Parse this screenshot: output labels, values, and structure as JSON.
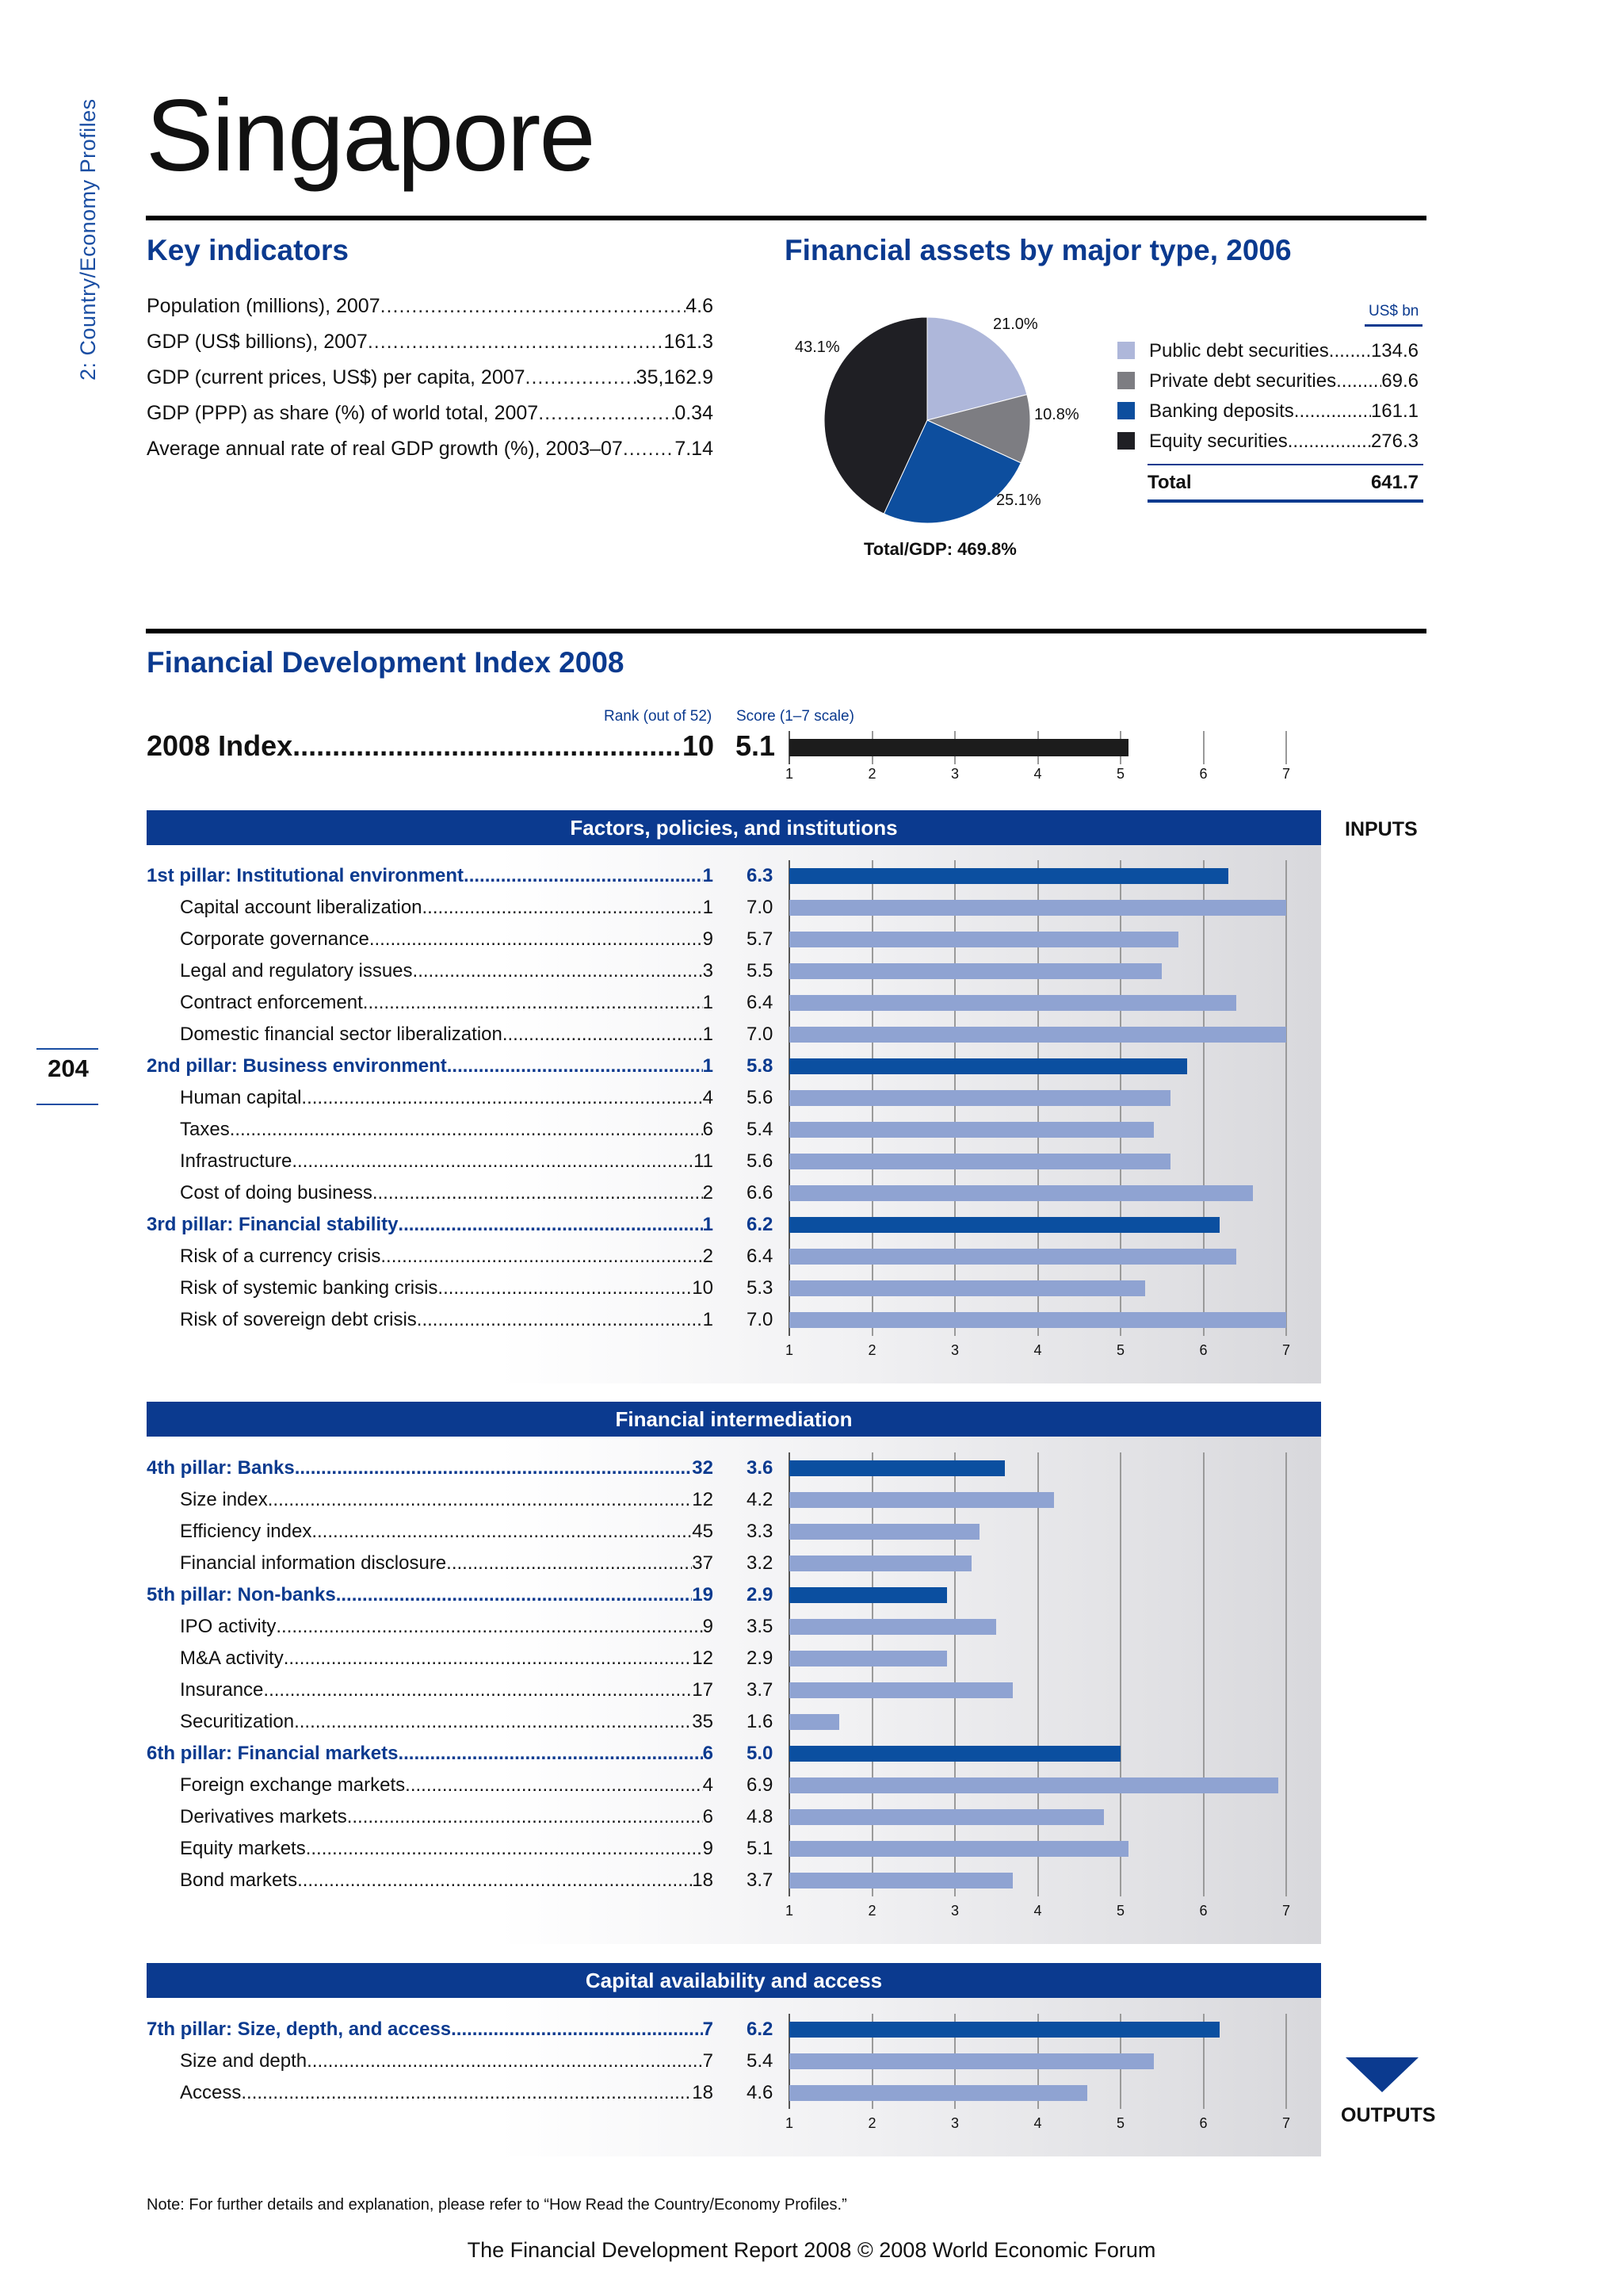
{
  "side_label": "2: Country/Economy Profiles",
  "page_number": "204",
  "title": "Singapore",
  "key_indicators": {
    "heading": "Key indicators",
    "rows": [
      {
        "label": "Population (millions), 2007",
        "value": "4.6"
      },
      {
        "label": "GDP (US$ billions), 2007",
        "value": "161.3"
      },
      {
        "label": "GDP (current prices, US$) per capita, 2007",
        "value": "35,162.9"
      },
      {
        "label": "GDP (PPP) as share (%) of world total, 2007",
        "value": "0.34"
      },
      {
        "label": "Average annual rate of real GDP growth (%), 2003–07",
        "value": "7.14"
      }
    ]
  },
  "assets": {
    "heading": "Financial assets by major type, 2006",
    "unit": "US$ bn",
    "total_gdp": "Total/GDP: 469.8%",
    "slices": [
      {
        "name": "Public debt securities",
        "value": "134.6",
        "pct": "21.0%",
        "share": 21.0,
        "color": "#aeb7da"
      },
      {
        "name": "Private debt securities",
        "value": "69.6",
        "pct": "10.8%",
        "share": 10.8,
        "color": "#7d7d82"
      },
      {
        "name": "Banking deposits",
        "value": "161.1",
        "pct": "25.1%",
        "share": 25.1,
        "color": "#0d4e9e"
      },
      {
        "name": "Equity securities",
        "value": "276.3",
        "pct": "43.1%",
        "share": 43.1,
        "color": "#1f1f24"
      }
    ],
    "total_label": "Total",
    "total_value": "641.7"
  },
  "fdi": {
    "heading": "Financial Development Index 2008",
    "rank_head": "Rank (out of 52)",
    "score_head": "Score (1–7 scale)",
    "index_label": "2008 Index",
    "index_rank": "10",
    "index_score": "5.1",
    "ticks": [
      "1",
      "2",
      "3",
      "4",
      "5",
      "6",
      "7"
    ],
    "inputs_label": "INPUTS",
    "outputs_label": "OUTPUTS",
    "note": "Note: For further details and explanation, please refer to “How Read the Country/Economy Profiles.”",
    "footer": "The Financial Development Report 2008 © 2008 World Economic Forum",
    "sections": [
      {
        "title": "Factors, policies, and institutions",
        "rows": [
          {
            "label": "1st pillar: Institutional environment",
            "rank": "1",
            "score": "6.3",
            "pillar": true
          },
          {
            "label": "Capital account liberalization",
            "rank": "1",
            "score": "7.0",
            "pillar": false
          },
          {
            "label": "Corporate governance",
            "rank": "9",
            "score": "5.7",
            "pillar": false
          },
          {
            "label": "Legal and regulatory issues",
            "rank": "3",
            "score": "5.5",
            "pillar": false
          },
          {
            "label": "Contract enforcement",
            "rank": "1",
            "score": "6.4",
            "pillar": false
          },
          {
            "label": "Domestic financial sector liberalization",
            "rank": "1",
            "score": "7.0",
            "pillar": false
          },
          {
            "label": "2nd pillar: Business environment",
            "rank": "1",
            "score": "5.8",
            "pillar": true
          },
          {
            "label": "Human capital",
            "rank": "4",
            "score": "5.6",
            "pillar": false
          },
          {
            "label": "Taxes",
            "rank": "6",
            "score": "5.4",
            "pillar": false
          },
          {
            "label": "Infrastructure",
            "rank": "11",
            "score": "5.6",
            "pillar": false
          },
          {
            "label": "Cost of doing business",
            "rank": "2",
            "score": "6.6",
            "pillar": false
          },
          {
            "label": "3rd pillar: Financial stability",
            "rank": "1",
            "score": "6.2",
            "pillar": true
          },
          {
            "label": "Risk of a currency crisis",
            "rank": "2",
            "score": "6.4",
            "pillar": false
          },
          {
            "label": "Risk of systemic banking crisis",
            "rank": "10",
            "score": "5.3",
            "pillar": false
          },
          {
            "label": "Risk of sovereign debt crisis",
            "rank": "1",
            "score": "7.0",
            "pillar": false
          }
        ]
      },
      {
        "title": "Financial intermediation",
        "rows": [
          {
            "label": "4th pillar: Banks",
            "rank": "32",
            "score": "3.6",
            "pillar": true
          },
          {
            "label": "Size index",
            "rank": "12",
            "score": "4.2",
            "pillar": false
          },
          {
            "label": "Efficiency index",
            "rank": "45",
            "score": "3.3",
            "pillar": false
          },
          {
            "label": "Financial information disclosure",
            "rank": "37",
            "score": "3.2",
            "pillar": false
          },
          {
            "label": "5th pillar: Non-banks",
            "rank": "19",
            "score": "2.9",
            "pillar": true
          },
          {
            "label": "IPO activity",
            "rank": "9",
            "score": "3.5",
            "pillar": false
          },
          {
            "label": "M&A activity",
            "rank": "12",
            "score": "2.9",
            "pillar": false
          },
          {
            "label": "Insurance",
            "rank": "17",
            "score": "3.7",
            "pillar": false
          },
          {
            "label": "Securitization",
            "rank": "35",
            "score": "1.6",
            "pillar": false
          },
          {
            "label": "6th pillar: Financial markets",
            "rank": "6",
            "score": "5.0",
            "pillar": true
          },
          {
            "label": "Foreign exchange markets",
            "rank": "4",
            "score": "6.9",
            "pillar": false
          },
          {
            "label": "Derivatives markets",
            "rank": "6",
            "score": "4.8",
            "pillar": false
          },
          {
            "label": "Equity markets",
            "rank": "9",
            "score": "5.1",
            "pillar": false
          },
          {
            "label": "Bond markets",
            "rank": "18",
            "score": "3.7",
            "pillar": false
          }
        ]
      },
      {
        "title": "Capital availability and access",
        "rows": [
          {
            "label": "7th pillar: Size, depth, and access",
            "rank": "7",
            "score": "6.2",
            "pillar": true
          },
          {
            "label": "Size and depth",
            "rank": "7",
            "score": "5.4",
            "pillar": false
          },
          {
            "label": "Access",
            "rank": "18",
            "score": "4.6",
            "pillar": false
          }
        ]
      }
    ]
  }
}
